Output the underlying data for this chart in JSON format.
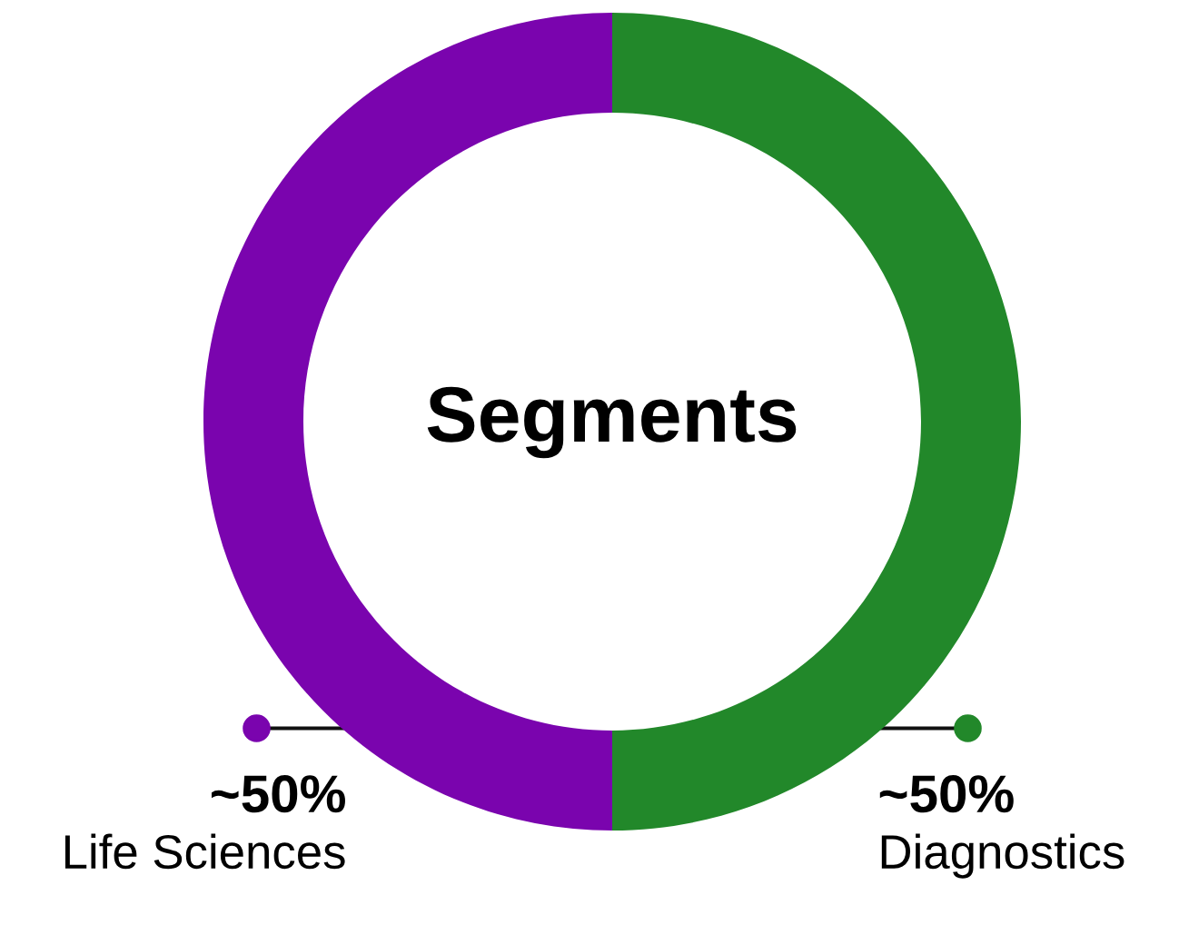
{
  "chart_data": {
    "type": "donut",
    "title": "Segments",
    "categories": [
      "Diagnostics",
      "Life Sciences"
    ],
    "values": [
      50,
      50
    ],
    "value_labels": [
      "~50%",
      "~50%"
    ],
    "colors": [
      "#22882a",
      "#7a04ae"
    ]
  }
}
